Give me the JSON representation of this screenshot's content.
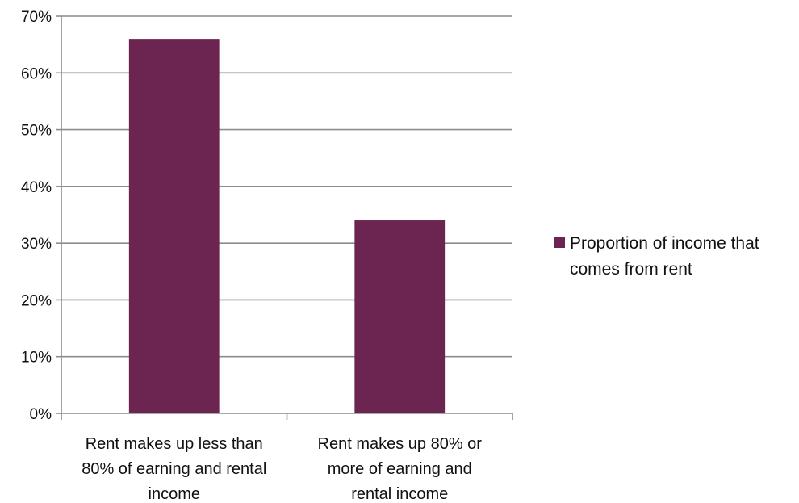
{
  "chart_data": {
    "type": "bar",
    "categories": [
      [
        "Rent makes up less than",
        "80% of earning and rental",
        "income"
      ],
      [
        "Rent makes up 80% or",
        "more of earning and",
        "rental income"
      ]
    ],
    "series": [
      {
        "name_lines": [
          "Proportion of income that",
          "comes from rent"
        ],
        "values": [
          66,
          34
        ],
        "color": "#6b2550"
      }
    ],
    "y_ticks": [
      "0%",
      "10%",
      "20%",
      "30%",
      "40%",
      "50%",
      "60%",
      "70%"
    ],
    "ylim": [
      0,
      70
    ],
    "y_unit": "%",
    "grid": true,
    "legend_position": "right"
  },
  "colors": {
    "bar": "#6b2550",
    "grid": "#8c8c8c",
    "axis": "#8c8c8c"
  }
}
